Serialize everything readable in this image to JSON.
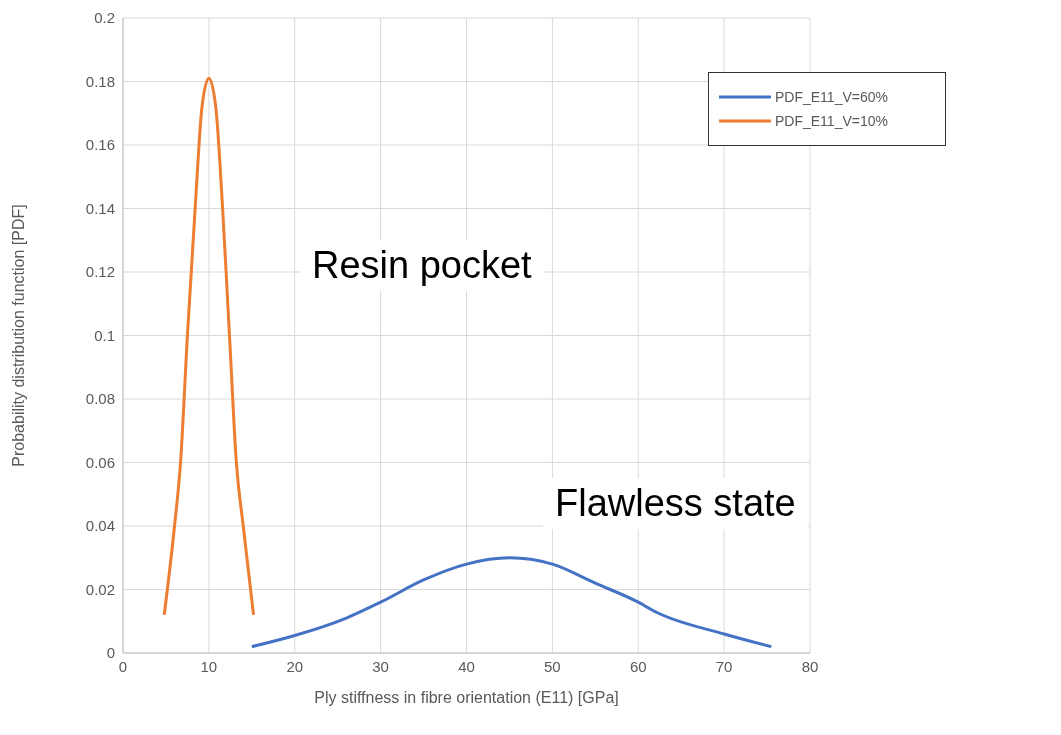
{
  "chart_data": {
    "type": "line",
    "xlabel": "Ply stiffness in fibre orientation (E11) [GPa]",
    "ylabel": "Probability distribution function [PDF]",
    "xlim": [
      0,
      80
    ],
    "xticks": [
      0,
      10,
      20,
      30,
      40,
      50,
      60,
      70,
      80
    ],
    "ylim": [
      0,
      0.2
    ],
    "yticks": [
      0,
      0.02,
      0.04,
      0.06,
      0.08,
      0.1,
      0.12,
      0.14,
      0.16,
      0.18,
      0.2
    ],
    "grid": true,
    "legend": "top right",
    "marker": "none",
    "line_style": "solid",
    "series": [
      {
        "name": "PDF_E11_V=60%",
        "color": "#4472c4",
        "x": [
          15,
          20,
          26,
          30,
          35,
          40,
          45,
          50,
          55,
          60,
          62,
          70,
          75.5
        ],
        "values": [
          0.002,
          0.0055,
          0.011,
          0.016,
          0.023,
          0.028,
          0.03,
          0.028,
          0.022,
          0.016,
          0.013,
          0.006,
          0.002
        ]
      },
      {
        "name": "PDF_E11_V=10%",
        "color": "#ed7d31",
        "x": [
          4.8,
          6,
          6.7,
          7.5,
          8.4,
          9.2,
          10,
          10.8,
          11.6,
          12.4,
          13.2,
          14,
          15.2
        ],
        "values": [
          0.012,
          0.04,
          0.06,
          0.1,
          0.14,
          0.172,
          0.181,
          0.172,
          0.14,
          0.1,
          0.06,
          0.04,
          0.012
        ]
      }
    ],
    "annotations": [
      "Resin pocket",
      "Flawless state"
    ]
  }
}
